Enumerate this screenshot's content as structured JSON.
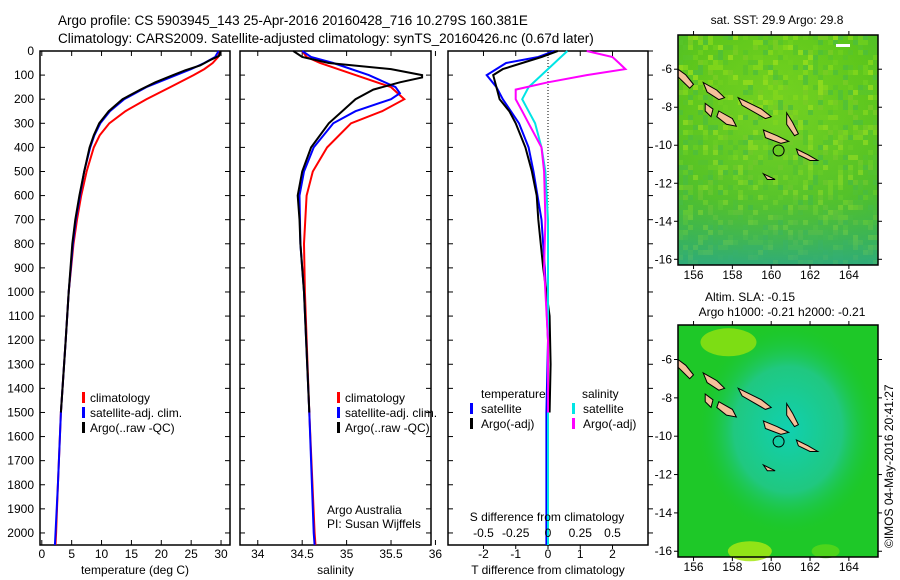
{
  "title_line1": "Argo profile: CS 5903945_143 25-Apr-2016 20160428_716 10.279S 160.381E",
  "title_line2": "Climatology: CARS2009. Satellite-adjusted climatology: synTS_20160426.nc (0.67d later)",
  "credit": "©IMOS 04-May-2016 20:41:27",
  "colors": {
    "climatology": "#ff0000",
    "satellite": "#0000ff",
    "argo": "#000000",
    "s_satellite": "#00e5e5",
    "s_argo": "#ff00ff",
    "land": "#f5c09a"
  },
  "chart_data": [
    {
      "type": "line",
      "id": "temperature",
      "xlabel": "temperature (deg C)",
      "ylabel": "",
      "xlim": [
        -0.3,
        31.5
      ],
      "ylim": [
        2050,
        0
      ],
      "xticks": [
        0,
        5,
        10,
        15,
        20,
        25,
        30
      ],
      "yticks": [
        0,
        100,
        200,
        300,
        400,
        500,
        600,
        700,
        800,
        900,
        1000,
        1100,
        1200,
        1300,
        1400,
        1500,
        1600,
        1700,
        1800,
        1900,
        2000
      ],
      "legend": [
        "climatology",
        "satellite-adj. clim.",
        "Argo(..raw -QC)"
      ],
      "series": [
        {
          "name": "climatology",
          "color": "#ff0000",
          "depth": [
            0,
            25,
            50,
            75,
            100,
            150,
            200,
            250,
            300,
            350,
            400,
            500,
            600,
            700,
            800,
            1000,
            1200,
            1500,
            1800,
            2000,
            2050
          ],
          "values": [
            29.8,
            29.5,
            28.6,
            27.2,
            25.4,
            21.5,
            17.5,
            14,
            11.3,
            9.7,
            8.7,
            7.5,
            6.6,
            5.9,
            5.3,
            4.5,
            4,
            3.2,
            2.7,
            2.4,
            2.3
          ]
        },
        {
          "name": "satellite-adj. clim.",
          "color": "#0000ff",
          "depth": [
            0,
            25,
            50,
            75,
            100,
            150,
            200,
            250,
            300,
            350,
            400,
            500,
            600,
            700,
            800,
            1000,
            1200,
            1500,
            1800,
            2000,
            2050
          ],
          "values": [
            29.6,
            29,
            27.2,
            25,
            22.5,
            17.5,
            13.8,
            11.4,
            9.8,
            8.8,
            8.1,
            7.1,
            6.4,
            5.7,
            5.2,
            4.5,
            4,
            3.2,
            2.7,
            2.3,
            2.2
          ]
        },
        {
          "name": "Argo(..raw -QC)",
          "color": "#000000",
          "depth": [
            0,
            20,
            40,
            60,
            80,
            100,
            130,
            160,
            200,
            250,
            300,
            350,
            400,
            500,
            600,
            700,
            800,
            1000,
            1200,
            1500
          ],
          "values": [
            29.9,
            29.7,
            28,
            26.5,
            24,
            22,
            19,
            16.5,
            13.5,
            11.2,
            9.6,
            8.7,
            8,
            7.1,
            6.3,
            5.6,
            5.1,
            4.5,
            4,
            3.2
          ]
        }
      ]
    },
    {
      "type": "line",
      "id": "salinity",
      "xlabel": "salinity",
      "ylabel": "",
      "xlim": [
        33.8,
        35.95
      ],
      "ylim": [
        2050,
        0
      ],
      "xticks": [
        34,
        34.5,
        35,
        35.5,
        36
      ],
      "legend": [
        "climatology",
        "satellite-adj. clim.",
        "Argo(..raw -QC)"
      ],
      "annotation": [
        "Argo Australia",
        "PI: Susan Wijffels"
      ],
      "series": [
        {
          "name": "climatology",
          "color": "#ff0000",
          "depth": [
            0,
            25,
            50,
            100,
            150,
            200,
            250,
            300,
            400,
            500,
            600,
            800,
            1000,
            1500,
            2000,
            2050
          ],
          "values": [
            34.5,
            34.55,
            34.7,
            35.1,
            35.5,
            35.65,
            35.4,
            35.05,
            34.78,
            34.62,
            34.55,
            34.52,
            34.53,
            34.58,
            34.64,
            34.65
          ]
        },
        {
          "name": "satellite-adj. clim.",
          "color": "#0000ff",
          "depth": [
            0,
            25,
            50,
            100,
            150,
            175,
            200,
            250,
            300,
            400,
            500,
            600,
            800,
            1000,
            1500,
            2000,
            2050
          ],
          "values": [
            34.5,
            34.6,
            34.85,
            35.25,
            35.55,
            35.6,
            35.5,
            35.1,
            34.85,
            34.63,
            34.52,
            34.47,
            34.48,
            34.52,
            34.58,
            34.63,
            34.64
          ]
        },
        {
          "name": "Argo(..raw -QC)",
          "color": "#000000",
          "depth": [
            0,
            25,
            50,
            75,
            100,
            110,
            130,
            160,
            200,
            250,
            300,
            400,
            500,
            600,
            700,
            800,
            1000,
            1500
          ],
          "values": [
            34.4,
            34.5,
            34.8,
            35.5,
            35.85,
            35.85,
            35.6,
            35.3,
            35.1,
            34.95,
            34.8,
            34.6,
            34.5,
            34.45,
            34.47,
            34.48,
            34.52,
            34.58
          ]
        }
      ]
    },
    {
      "type": "line",
      "id": "difference",
      "xlabel": "T difference from climatology",
      "x2label": "S difference from climatology",
      "xlim": [
        -3.1,
        3.1
      ],
      "ylim": [
        2050,
        0
      ],
      "xticks": [
        -2,
        -1,
        0,
        1,
        2
      ],
      "x2ticks": [
        -0.5,
        -0.25,
        0,
        0.25,
        0.5
      ],
      "legend_headers": [
        "temperature",
        "salinity"
      ],
      "legend": [
        "satellite",
        "Argo(-adj)",
        "satellite",
        "Argo(-adj)"
      ],
      "series": [
        {
          "name": "T satellite",
          "color": "#0000ff",
          "axis": "T",
          "depth": [
            0,
            25,
            50,
            100,
            150,
            200,
            300,
            400,
            500,
            700,
            900,
            1200,
            1500,
            2000,
            2050
          ],
          "values": [
            0.2,
            -0.3,
            -1.3,
            -1.9,
            -1.6,
            -1.4,
            -0.9,
            -0.6,
            -0.45,
            -0.2,
            -0.1,
            0,
            -0.05,
            -0.05,
            -0.05
          ]
        },
        {
          "name": "T Argo(-adj)",
          "color": "#000000",
          "axis": "T",
          "depth": [
            0,
            25,
            50,
            75,
            100,
            150,
            200,
            250,
            300,
            400,
            500,
            600,
            700,
            900,
            1100,
            1300,
            1500
          ],
          "values": [
            0.3,
            -0.2,
            -0.8,
            -1.4,
            -1.7,
            -1.6,
            -1.5,
            -1.2,
            -1.0,
            -0.7,
            -0.5,
            -0.35,
            -0.3,
            -0.15,
            0.05,
            0.08,
            0.05
          ]
        },
        {
          "name": "S satellite",
          "color": "#00e5e5",
          "axis": "S",
          "depth": [
            0,
            25,
            50,
            100,
            150,
            200,
            250,
            300,
            400,
            500,
            700,
            1000,
            1500,
            2000,
            2050
          ],
          "values": [
            0.15,
            0.1,
            0.05,
            -0.05,
            -0.15,
            -0.2,
            -0.15,
            -0.1,
            -0.05,
            -0.02,
            0,
            0,
            0,
            0,
            0
          ]
        },
        {
          "name": "S Argo(-adj)",
          "color": "#ff00ff",
          "axis": "S",
          "depth": [
            0,
            25,
            50,
            75,
            100,
            130,
            160,
            200,
            250,
            300,
            400,
            500,
            700,
            900,
            1200,
            1500
          ],
          "values": [
            0.3,
            0.5,
            0.55,
            0.6,
            0.3,
            0.0,
            -0.25,
            -0.25,
            -0.2,
            -0.15,
            -0.05,
            -0.03,
            -0.02,
            -0.03,
            0,
            0
          ]
        }
      ]
    },
    {
      "type": "heatmap",
      "id": "sst_map",
      "title": "sat. SST: 29.9 Argo: 29.8",
      "xlim": [
        155.2,
        165.5
      ],
      "ylim": [
        -16.3,
        -4.2
      ],
      "xticks": [
        156,
        158,
        160,
        162,
        164
      ],
      "yticks": [
        -6,
        -8,
        -10,
        -12,
        -14,
        -16
      ],
      "argo_position": [
        160.381,
        -10.279
      ]
    },
    {
      "type": "heatmap",
      "id": "sla_map",
      "title": "Altim. SLA: -0.15",
      "subtitle": "Argo h1000: -0.21 h2000: -0.21",
      "xlim": [
        155.2,
        165.5
      ],
      "ylim": [
        -16.3,
        -4.2
      ],
      "xticks": [
        156,
        158,
        160,
        162,
        164
      ],
      "yticks": [
        -6,
        -8,
        -10,
        -12,
        -14,
        -16
      ],
      "argo_position": [
        160.381,
        -10.279
      ]
    }
  ],
  "islands": [
    [
      [
        155.2,
        -6.0
      ],
      [
        155.6,
        -6.3
      ],
      [
        156.0,
        -6.8
      ],
      [
        155.8,
        -7.0
      ],
      [
        155.4,
        -6.6
      ],
      [
        155.2,
        -6.4
      ]
    ],
    [
      [
        156.5,
        -6.7
      ],
      [
        157.2,
        -7.1
      ],
      [
        157.6,
        -7.5
      ],
      [
        157.3,
        -7.6
      ],
      [
        156.7,
        -7.2
      ]
    ],
    [
      [
        156.6,
        -7.8
      ],
      [
        157.0,
        -8.1
      ],
      [
        156.9,
        -8.5
      ],
      [
        156.6,
        -8.2
      ]
    ],
    [
      [
        157.3,
        -8.2
      ],
      [
        158.0,
        -8.6
      ],
      [
        158.2,
        -9.0
      ],
      [
        157.7,
        -8.9
      ],
      [
        157.2,
        -8.5
      ]
    ],
    [
      [
        158.3,
        -7.5
      ],
      [
        159.5,
        -8.1
      ],
      [
        160.0,
        -8.5
      ],
      [
        159.7,
        -8.6
      ],
      [
        158.5,
        -7.9
      ]
    ],
    [
      [
        159.6,
        -9.2
      ],
      [
        160.3,
        -9.5
      ],
      [
        160.9,
        -9.8
      ],
      [
        160.5,
        -9.9
      ],
      [
        159.7,
        -9.6
      ]
    ],
    [
      [
        160.8,
        -8.3
      ],
      [
        161.1,
        -8.8
      ],
      [
        161.4,
        -9.4
      ],
      [
        161.2,
        -9.5
      ],
      [
        160.8,
        -8.9
      ]
    ],
    [
      [
        161.3,
        -10.2
      ],
      [
        161.9,
        -10.5
      ],
      [
        162.4,
        -10.8
      ],
      [
        162.0,
        -10.8
      ],
      [
        161.4,
        -10.5
      ]
    ],
    [
      [
        159.6,
        -11.5
      ],
      [
        160.0,
        -11.7
      ],
      [
        160.2,
        -11.8
      ],
      [
        159.8,
        -11.8
      ]
    ]
  ]
}
